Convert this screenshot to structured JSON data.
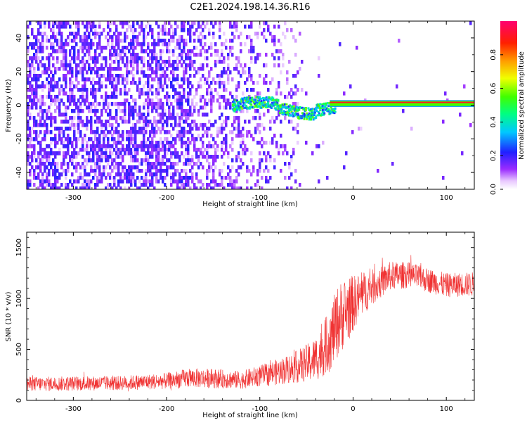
{
  "title": "C2E1.2024.198.14.36.R16",
  "chart_data": [
    {
      "type": "heatmap",
      "title": "C2E1.2024.198.14.36.R16",
      "xlabel": "Height of straight line (km)",
      "ylabel": "Frequency (Hz)",
      "xlim": [
        -350,
        130
      ],
      "ylim": [
        -50,
        50
      ],
      "xticks": [
        -300,
        -200,
        -100,
        0,
        100
      ],
      "yticks": [
        -40,
        -20,
        0,
        20,
        40
      ],
      "colorbar": {
        "label": "Normalized spectral amplitude",
        "range": [
          0,
          1
        ],
        "ticks": [
          0.0,
          0.2,
          0.4,
          0.6,
          0.8
        ],
        "colormap": "rainbow"
      },
      "features": [
        {
          "x": [
            -350,
            -175
          ],
          "description": "dense broadband noise, amplitude 0.1-0.3"
        },
        {
          "x": [
            -175,
            -55
          ],
          "description": "sparse noise fading with height"
        },
        {
          "x": [
            -130,
            -25
          ],
          "y": [
            -5,
            5
          ],
          "description": "signal trace near 0 Hz, amplitude 0.3-0.6"
        },
        {
          "x": [
            -25,
            130
          ],
          "y": [
            0,
            2
          ],
          "description": "strong steady tone, amplitude ~0.9"
        }
      ]
    },
    {
      "type": "line",
      "xlabel": "Height of straight line (km)",
      "ylabel": "SNR (10 * v/v)",
      "xlim": [
        -350,
        130
      ],
      "ylim": [
        0,
        1650
      ],
      "xticks": [
        -300,
        -200,
        -100,
        0,
        100
      ],
      "yticks": [
        0,
        500,
        1000,
        1500
      ],
      "series": [
        {
          "color": "#f03232",
          "x": [
            -350,
            -300,
            -250,
            -200,
            -175,
            -150,
            -120,
            -100,
            -80,
            -60,
            -45,
            -35,
            -25,
            -15,
            -5,
            5,
            15,
            25,
            40,
            60,
            80,
            100,
            130
          ],
          "mean": [
            160,
            165,
            170,
            190,
            220,
            215,
            200,
            240,
            280,
            330,
            380,
            450,
            600,
            800,
            900,
            1000,
            1080,
            1130,
            1220,
            1230,
            1180,
            1130,
            1140
          ],
          "spread": [
            90,
            90,
            90,
            100,
            120,
            120,
            110,
            130,
            160,
            200,
            250,
            300,
            400,
            450,
            400,
            300,
            250,
            200,
            180,
            160,
            150,
            150,
            150
          ]
        }
      ]
    }
  ]
}
